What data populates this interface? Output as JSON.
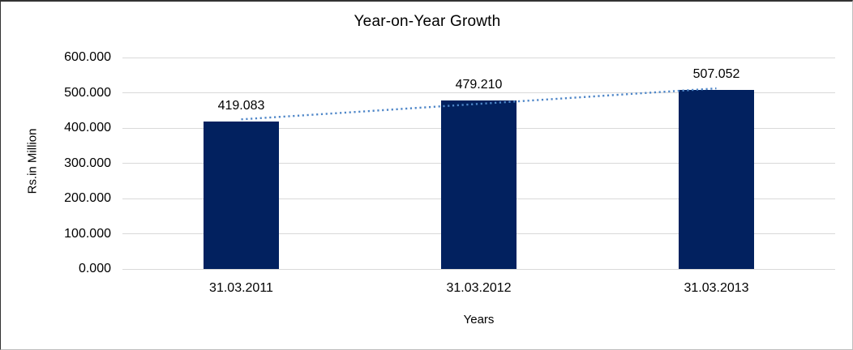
{
  "chart_data": {
    "type": "bar",
    "title": "Year-on-Year Growth",
    "xlabel": "Years",
    "ylabel": "Rs.in Million",
    "categories": [
      "31.03.2011",
      "31.03.2012",
      "31.03.2013"
    ],
    "values": [
      419.083,
      479.21,
      507.052
    ],
    "data_labels": [
      "419.083",
      "479.210",
      "507.052"
    ],
    "ylim": [
      0,
      600
    ],
    "ytick_step": 100,
    "ytick_labels": [
      "0.000",
      "100.000",
      "200.000",
      "300.000",
      "400.000",
      "500.000",
      "600.000"
    ],
    "grid": "horizontal",
    "legend_position": "none",
    "trendline": {
      "type": "linear",
      "style": "dotted"
    },
    "colors": {
      "bar": "#02215F",
      "trendline": "#4E86C8",
      "gridline": "#D9D9D9",
      "text": "#000000",
      "border_dark": "#333333",
      "border_light": "#BFBFBF",
      "background": "#FFFFFF"
    }
  }
}
